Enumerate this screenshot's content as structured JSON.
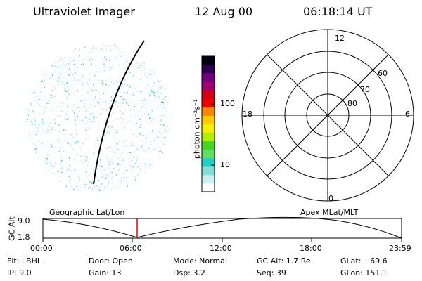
{
  "header": {
    "instrument": "Ultraviolet Imager",
    "date": "12 Aug 00",
    "time": "06:18:14 UT"
  },
  "colorbar": {
    "unit_label": "photon cm⁻²s⁻¹",
    "ticks": [
      "100",
      "10"
    ],
    "colors": [
      "#ffffff",
      "#c8f0f0",
      "#80e0d8",
      "#20d0c8",
      "#60e060",
      "#40d820",
      "#b0f000",
      "#f0f000",
      "#ffc800",
      "#ff8800",
      "#f00000",
      "#d00018",
      "#a00070",
      "#700080",
      "#300050",
      "#000010"
    ]
  },
  "polar": {
    "mlt_labels": {
      "top": "12",
      "left": "18",
      "right": "6",
      "bottom": "0"
    },
    "lat_labels": [
      "60",
      "70",
      "80"
    ]
  },
  "timeline": {
    "left_title": "Geographic Lat/Lon",
    "right_title": "Apex MLat/MLT",
    "axis_label": "GC Alt",
    "y_top": "9.0",
    "y_bottom": "1.8",
    "time_ticks": [
      "00:00",
      "06:00",
      "12:00",
      "18:00",
      "23:59"
    ],
    "marker_color": "#e00000"
  },
  "info": {
    "filter": "Flt: LBHL",
    "ip": "IP:  9.0",
    "door": "Door: Open",
    "gain": "Gain: 13",
    "mode": "Mode: Normal",
    "dsp": "Dsp:     3.2",
    "gc_alt": "GC Alt: 1.7 Re",
    "seq": "Seq: 39",
    "glat": "GLat: −69.6",
    "glon": "GLon: 151.1"
  }
}
